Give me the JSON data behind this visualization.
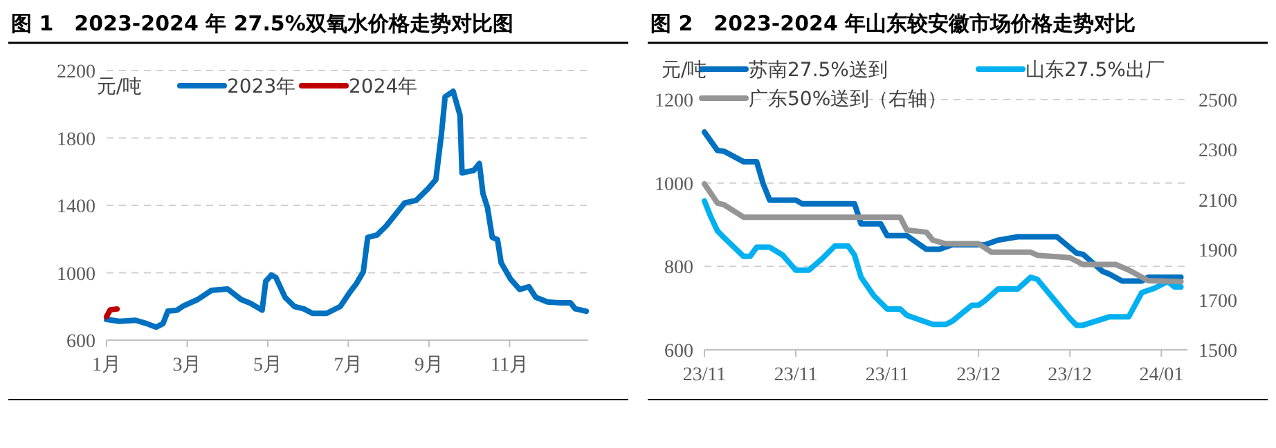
{
  "chart_data": [
    {
      "type": "line",
      "title": "图 1　2023-2024 年 27.5%双氧水价格走势对比图",
      "ylabel": "元/吨",
      "xlim": [
        1,
        12.95
      ],
      "xticks": [
        {
          "value": 1,
          "label": "1月"
        },
        {
          "value": 3,
          "label": "3月"
        },
        {
          "value": 5,
          "label": "5月"
        },
        {
          "value": 7,
          "label": "7月"
        },
        {
          "value": 9,
          "label": "9月"
        },
        {
          "value": 11,
          "label": "11月"
        }
      ],
      "ylim": [
        600,
        2200
      ],
      "yticks": [
        600,
        1000,
        1400,
        1800,
        2200
      ],
      "grid": "y",
      "legend": "top",
      "marker": "none",
      "line_style": "solid",
      "series": [
        {
          "name": "2023年",
          "color": "#0070c0",
          "x": [
            1.0,
            1.32,
            1.72,
            2.0,
            2.23,
            2.4,
            2.52,
            2.75,
            2.92,
            3.26,
            3.6,
            4.0,
            4.34,
            4.57,
            4.86,
            4.95,
            5.09,
            5.2,
            5.43,
            5.66,
            5.89,
            6.11,
            6.46,
            6.8,
            7.03,
            7.2,
            7.37,
            7.48,
            7.71,
            7.94,
            8.17,
            8.4,
            8.68,
            8.97,
            9.17,
            9.31,
            9.4,
            9.6,
            9.77,
            9.82,
            10.11,
            10.25,
            10.34,
            10.45,
            10.57,
            10.7,
            10.79,
            11.02,
            11.25,
            11.48,
            11.65,
            11.94,
            12.22,
            12.51,
            12.63,
            12.9
          ],
          "values": [
            723,
            712,
            718,
            698,
            677,
            698,
            772,
            778,
            805,
            841,
            895,
            904,
            841,
            819,
            778,
            950,
            986,
            972,
            854,
            800,
            786,
            759,
            759,
            800,
            882,
            936,
            1005,
            1210,
            1224,
            1278,
            1347,
            1415,
            1429,
            1497,
            1552,
            1825,
            2044,
            2077,
            1935,
            1593,
            1607,
            1648,
            1470,
            1388,
            1210,
            1196,
            1059,
            964,
            901,
            917,
            854,
            827,
            822,
            822,
            786,
            772
          ]
        },
        {
          "name": "2024年",
          "color": "#c00000",
          "x": [
            1.0,
            1.09,
            1.26
          ],
          "values": [
            740,
            780,
            785
          ]
        }
      ]
    },
    {
      "type": "line",
      "title": "图 2　2023-2024 年山东较安徽市场价格走势对比",
      "ylabel": "元/吨",
      "xlim": [
        "2023-11-01",
        "2024-01-14"
      ],
      "xticks": [
        {
          "value": "2023-11-01",
          "label": "23/11"
        },
        {
          "value": "2023-11-15",
          "label": "23/11"
        },
        {
          "value": "2023-11-29",
          "label": "23/11"
        },
        {
          "value": "2023-12-13",
          "label": "23/12"
        },
        {
          "value": "2023-12-27",
          "label": "23/12"
        },
        {
          "value": "2024-01-10",
          "label": "24/01"
        }
      ],
      "ylim": [
        600,
        1200
      ],
      "yticks": [
        600,
        800,
        1000,
        1200
      ],
      "y2lim": [
        1500,
        2500
      ],
      "y2ticks": [
        1500,
        1700,
        1900,
        2100,
        2300,
        2500
      ],
      "grid": "y",
      "legend": "top",
      "marker": "none",
      "line_style": "solid",
      "series": [
        {
          "name": "苏南27.5%送到",
          "color": "#0070c0",
          "x": [
            "2023-11-01",
            "2023-11-03",
            "2023-11-04",
            "2023-11-07",
            "2023-11-09",
            "2023-11-10",
            "2023-11-11",
            "2023-11-15",
            "2023-11-16",
            "2023-11-24",
            "2023-11-25",
            "2023-11-28",
            "2023-11-29",
            "2023-12-02",
            "2023-12-05",
            "2023-12-07",
            "2023-12-09",
            "2023-12-14",
            "2023-12-16",
            "2023-12-19",
            "2023-12-25",
            "2023-12-28",
            "2023-12-29",
            "2024-01-01",
            "2024-01-02",
            "2024-01-04",
            "2024-01-07",
            "2024-01-08",
            "2024-01-11",
            "2024-01-13"
          ],
          "values": [
            1122,
            1078,
            1076,
            1051,
            1051,
            998,
            959,
            959,
            950,
            950,
            902,
            902,
            874,
            874,
            841,
            841,
            852,
            852,
            863,
            871,
            871,
            832,
            829,
            788,
            782,
            765,
            765,
            774,
            774,
            774
          ]
        },
        {
          "name": "山东27.5%出厂",
          "color": "#00b0f0",
          "x": [
            "2023-11-01",
            "2023-11-02",
            "2023-11-03",
            "2023-11-04",
            "2023-11-07",
            "2023-11-08",
            "2023-11-09",
            "2023-11-11",
            "2023-11-13",
            "2023-11-15",
            "2023-11-17",
            "2023-11-19",
            "2023-11-21",
            "2023-11-23",
            "2023-11-24",
            "2023-11-25",
            "2023-11-27",
            "2023-11-29",
            "2023-12-01",
            "2023-12-02",
            "2023-12-06",
            "2023-12-08",
            "2023-12-09",
            "2023-12-12",
            "2023-12-13",
            "2023-12-14",
            "2023-12-16",
            "2023-12-19",
            "2023-12-21",
            "2023-12-22",
            "2023-12-27",
            "2023-12-28",
            "2023-12-29",
            "2024-01-02",
            "2024-01-05",
            "2024-01-07",
            "2024-01-09",
            "2024-01-11",
            "2024-01-12",
            "2024-01-13"
          ],
          "values": [
            957,
            918,
            885,
            869,
            824,
            824,
            846,
            846,
            827,
            791,
            791,
            818,
            849,
            849,
            827,
            774,
            729,
            698,
            698,
            683,
            661,
            661,
            669,
            707,
            707,
            718,
            746,
            746,
            774,
            769,
            675,
            659,
            659,
            679,
            679,
            737,
            748,
            764,
            751,
            751
          ]
        },
        {
          "name": "广东50%送到（右轴）",
          "color": "#959595",
          "axis": "y2",
          "x": [
            "2023-11-01",
            "2023-11-03",
            "2023-11-04",
            "2023-11-07",
            "2023-12-01",
            "2023-12-02",
            "2023-12-05",
            "2023-12-06",
            "2023-12-08",
            "2023-12-13",
            "2023-12-15",
            "2023-12-21",
            "2023-12-22",
            "2023-12-27",
            "2023-12-29",
            "2024-01-03",
            "2024-01-05",
            "2024-01-08",
            "2024-01-13"
          ],
          "values": [
            2163,
            2086,
            2080,
            2030,
            2030,
            1979,
            1970,
            1938,
            1924,
            1924,
            1890,
            1890,
            1878,
            1868,
            1841,
            1841,
            1819,
            1776,
            1773
          ]
        }
      ]
    }
  ]
}
